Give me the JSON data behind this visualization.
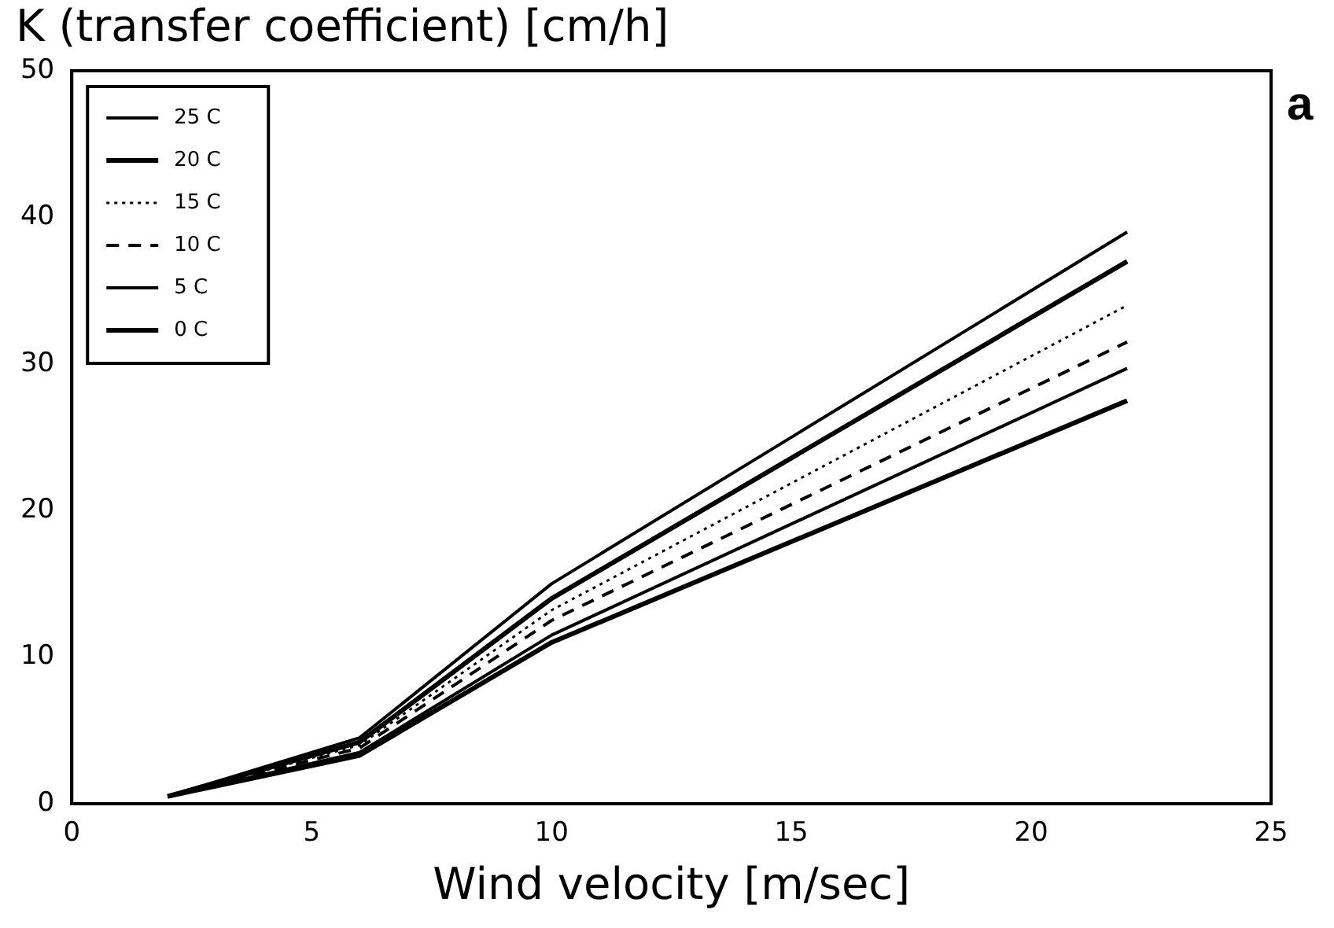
{
  "chart_data": {
    "type": "line",
    "title": "K (transfer coefficient) [cm/h]",
    "xlabel": "Wind velocity [m/sec]",
    "annotations": [
      "a"
    ],
    "x": [
      2,
      6,
      10,
      22
    ],
    "series": [
      {
        "name": "25 C",
        "color": "#000000",
        "line_style": "solid",
        "values": [
          0.5,
          4.5,
          15,
          39
        ]
      },
      {
        "name": "20 C",
        "color": "#000000",
        "line_style": "solid",
        "values": [
          0.5,
          4.2,
          14,
          37
        ]
      },
      {
        "name": "15 C",
        "color": "#000000",
        "line_style": "dotted",
        "values": [
          0.5,
          4,
          13.2,
          34
        ]
      },
      {
        "name": "10 C",
        "color": "#000000",
        "line_style": "dashed",
        "values": [
          0.5,
          3.8,
          12.5,
          31.5
        ]
      },
      {
        "name": "5 C",
        "color": "#000000",
        "line_style": "solid",
        "values": [
          0.5,
          3.5,
          11.5,
          29.7
        ]
      },
      {
        "name": "0 C",
        "color": "#000000",
        "line_style": "solid",
        "values": [
          0.5,
          3.3,
          11,
          27.5
        ]
      }
    ],
    "xlim": [
      0,
      25
    ],
    "xticks": [
      0,
      5,
      10,
      15,
      20,
      25
    ],
    "ylim": [
      0,
      50
    ],
    "yticks": [
      0,
      10,
      20,
      30,
      40,
      50
    ],
    "grid": false,
    "legend": "top left",
    "marker": "none"
  }
}
